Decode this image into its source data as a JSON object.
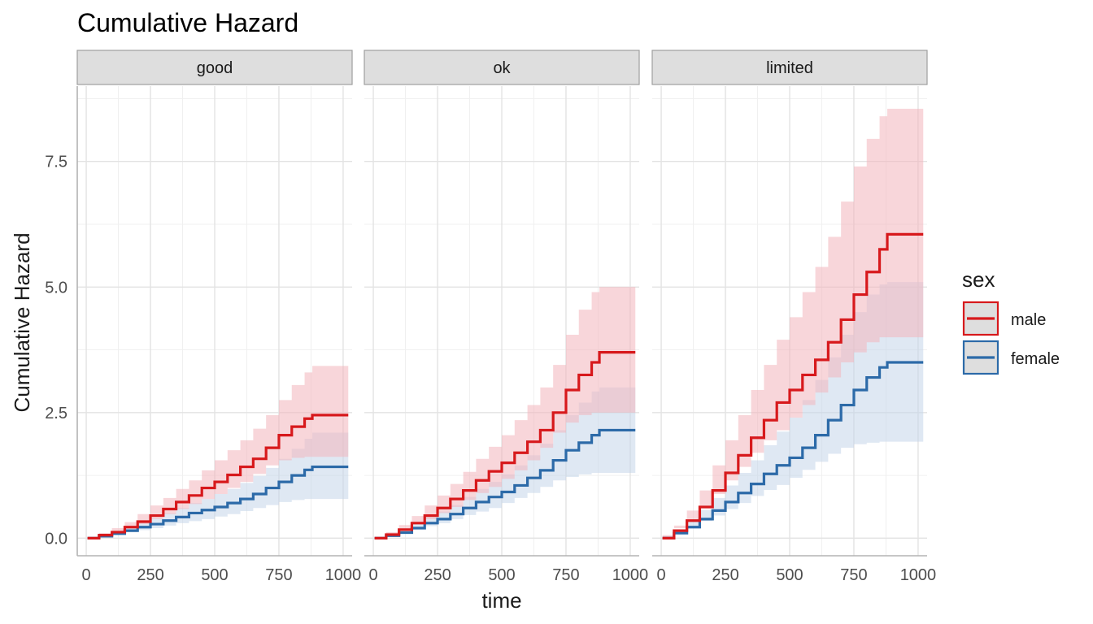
{
  "chart_data": {
    "type": "line",
    "title": "Cumulative Hazard",
    "xlabel": "time",
    "ylabel": "Cumulative Hazard",
    "xlim": [
      -35,
      1035
    ],
    "ylim": [
      -0.35,
      9.0
    ],
    "xticks": [
      0,
      250,
      500,
      750,
      1000
    ],
    "xtick_labels": [
      "0",
      "250",
      "500",
      "750",
      "1000"
    ],
    "yticks": [
      0,
      2.5,
      5,
      7.5
    ],
    "ytick_labels": [
      "0.0",
      "2.5",
      "5.0",
      "7.5"
    ],
    "grid": true,
    "legend": {
      "title": "sex",
      "position": "right",
      "entries": [
        {
          "label": "male",
          "color": "#d7191c"
        },
        {
          "label": "female",
          "color": "#2c6aa8"
        }
      ]
    },
    "series_colors": {
      "male": "#d7191c",
      "female": "#2c6aa8"
    },
    "band_colors": {
      "male": "#f2b4bc",
      "female": "#c5d5ea"
    },
    "panels": [
      {
        "label": "good",
        "series": [
          {
            "name": "male",
            "x": [
              5,
              50,
              100,
              150,
              200,
              250,
              300,
              350,
              400,
              450,
              500,
              550,
              600,
              650,
              700,
              750,
              800,
              850,
              880,
              1020
            ],
            "y": [
              0,
              0.06,
              0.12,
              0.22,
              0.33,
              0.45,
              0.58,
              0.72,
              0.85,
              1.0,
              1.12,
              1.26,
              1.42,
              1.58,
              1.8,
              2.05,
              2.22,
              2.38,
              2.45,
              2.45
            ],
            "lower": [
              0,
              0.02,
              0.06,
              0.12,
              0.2,
              0.28,
              0.38,
              0.48,
              0.58,
              0.68,
              0.78,
              0.88,
              1.0,
              1.12,
              1.28,
              1.45,
              1.55,
              1.6,
              1.62,
              1.62
            ],
            "upper": [
              0,
              0.1,
              0.2,
              0.32,
              0.48,
              0.65,
              0.8,
              0.98,
              1.15,
              1.35,
              1.55,
              1.75,
              1.95,
              2.18,
              2.45,
              2.75,
              3.05,
              3.3,
              3.43,
              3.43
            ]
          },
          {
            "name": "female",
            "x": [
              5,
              50,
              100,
              150,
              200,
              250,
              300,
              350,
              400,
              450,
              500,
              550,
              600,
              650,
              700,
              750,
              800,
              850,
              880,
              1020
            ],
            "y": [
              0,
              0.04,
              0.09,
              0.15,
              0.22,
              0.28,
              0.35,
              0.42,
              0.5,
              0.56,
              0.62,
              0.7,
              0.78,
              0.88,
              1.0,
              1.12,
              1.25,
              1.36,
              1.42,
              1.42
            ],
            "lower": [
              0,
              0.01,
              0.04,
              0.08,
              0.12,
              0.16,
              0.2,
              0.25,
              0.3,
              0.34,
              0.38,
              0.43,
              0.48,
              0.54,
              0.6,
              0.66,
              0.72,
              0.76,
              0.78,
              0.78
            ],
            "upper": [
              0,
              0.07,
              0.14,
              0.22,
              0.32,
              0.4,
              0.5,
              0.6,
              0.7,
              0.78,
              0.88,
              0.98,
              1.1,
              1.24,
              1.4,
              1.58,
              1.78,
              1.98,
              2.1,
              2.1
            ]
          }
        ]
      },
      {
        "label": "ok",
        "series": [
          {
            "name": "male",
            "x": [
              5,
              50,
              100,
              150,
              200,
              250,
              300,
              350,
              400,
              450,
              500,
              550,
              600,
              650,
              700,
              750,
              800,
              850,
              880,
              1020
            ],
            "y": [
              0,
              0.07,
              0.17,
              0.3,
              0.45,
              0.6,
              0.78,
              0.95,
              1.15,
              1.33,
              1.5,
              1.7,
              1.92,
              2.15,
              2.5,
              2.95,
              3.25,
              3.5,
              3.7,
              3.7
            ],
            "lower": [
              0,
              0.03,
              0.09,
              0.18,
              0.28,
              0.38,
              0.5,
              0.62,
              0.76,
              0.9,
              1.02,
              1.18,
              1.35,
              1.55,
              1.8,
              2.1,
              2.3,
              2.45,
              2.5,
              2.5
            ],
            "upper": [
              0,
              0.12,
              0.26,
              0.44,
              0.65,
              0.85,
              1.08,
              1.32,
              1.58,
              1.82,
              2.05,
              2.35,
              2.65,
              3.0,
              3.45,
              4.05,
              4.55,
              4.9,
              5.0,
              5.0
            ]
          },
          {
            "name": "female",
            "x": [
              5,
              50,
              100,
              150,
              200,
              250,
              300,
              350,
              400,
              450,
              500,
              550,
              600,
              650,
              700,
              750,
              800,
              850,
              880,
              1020
            ],
            "y": [
              0,
              0.05,
              0.11,
              0.2,
              0.3,
              0.38,
              0.48,
              0.6,
              0.72,
              0.82,
              0.92,
              1.05,
              1.2,
              1.35,
              1.55,
              1.75,
              1.9,
              2.05,
              2.15,
              2.15
            ],
            "lower": [
              0,
              0.02,
              0.05,
              0.11,
              0.18,
              0.24,
              0.3,
              0.38,
              0.46,
              0.53,
              0.6,
              0.7,
              0.8,
              0.9,
              1.02,
              1.15,
              1.22,
              1.27,
              1.3,
              1.3
            ],
            "upper": [
              0,
              0.08,
              0.17,
              0.29,
              0.42,
              0.53,
              0.66,
              0.82,
              0.98,
              1.12,
              1.27,
              1.45,
              1.65,
              1.88,
              2.15,
              2.45,
              2.7,
              2.92,
              3.0,
              3.0
            ]
          }
        ]
      },
      {
        "label": "limited",
        "series": [
          {
            "name": "male",
            "x": [
              5,
              50,
              100,
              150,
              200,
              250,
              300,
              350,
              400,
              450,
              500,
              550,
              600,
              650,
              700,
              750,
              800,
              850,
              880,
              1020
            ],
            "y": [
              0,
              0.15,
              0.35,
              0.62,
              0.95,
              1.3,
              1.65,
              2.0,
              2.35,
              2.7,
              2.95,
              3.25,
              3.55,
              3.9,
              4.35,
              4.85,
              5.3,
              5.75,
              6.05,
              6.05
            ],
            "lower": [
              0,
              0.06,
              0.2,
              0.38,
              0.62,
              0.88,
              1.15,
              1.42,
              1.7,
              1.95,
              2.15,
              2.4,
              2.65,
              2.9,
              3.2,
              3.5,
              3.7,
              3.9,
              4.0,
              4.0
            ],
            "upper": [
              0,
              0.25,
              0.55,
              0.95,
              1.45,
              1.95,
              2.45,
              2.95,
              3.45,
              3.95,
              4.4,
              4.9,
              5.4,
              6.0,
              6.7,
              7.4,
              7.95,
              8.4,
              8.55,
              8.55
            ]
          },
          {
            "name": "female",
            "x": [
              5,
              50,
              100,
              150,
              200,
              250,
              300,
              350,
              400,
              450,
              500,
              550,
              600,
              650,
              700,
              750,
              800,
              850,
              880,
              1020
            ],
            "y": [
              0,
              0.1,
              0.22,
              0.38,
              0.55,
              0.72,
              0.9,
              1.08,
              1.28,
              1.45,
              1.6,
              1.8,
              2.05,
              2.35,
              2.65,
              2.95,
              3.2,
              3.4,
              3.5,
              3.5
            ],
            "lower": [
              0,
              0.04,
              0.12,
              0.22,
              0.34,
              0.45,
              0.58,
              0.7,
              0.84,
              0.96,
              1.06,
              1.2,
              1.36,
              1.52,
              1.68,
              1.8,
              1.87,
              1.9,
              1.92,
              1.92
            ],
            "upper": [
              0,
              0.16,
              0.34,
              0.56,
              0.8,
              1.05,
              1.3,
              1.55,
              1.85,
              2.12,
              2.4,
              2.75,
              3.15,
              3.6,
              4.05,
              4.5,
              4.85,
              5.05,
              5.1,
              5.1
            ]
          }
        ]
      }
    ]
  }
}
